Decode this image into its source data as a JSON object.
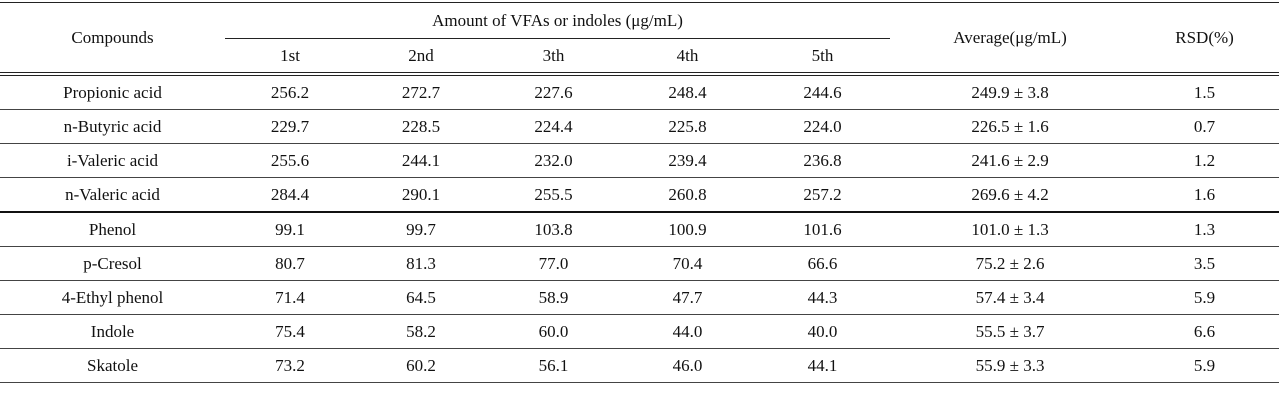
{
  "header": {
    "compounds": "Compounds",
    "amount": "Amount of VFAs or indoles (μg/mL)",
    "runs": [
      "1st",
      "2nd",
      "3th",
      "4th",
      "5th"
    ],
    "average": "Average(μg/mL)",
    "rsd": "RSD(%)"
  },
  "rows": [
    {
      "compound": "Propionic acid",
      "values": [
        "256.2",
        "272.7",
        "227.6",
        "248.4",
        "244.6"
      ],
      "average": "249.9 ± 3.8",
      "rsd": "1.5"
    },
    {
      "compound": "n-Butyric acid",
      "values": [
        "229.7",
        "228.5",
        "224.4",
        "225.8",
        "224.0"
      ],
      "average": "226.5 ± 1.6",
      "rsd": "0.7"
    },
    {
      "compound": "i-Valeric acid",
      "values": [
        "255.6",
        "244.1",
        "232.0",
        "239.4",
        "236.8"
      ],
      "average": "241.6 ± 2.9",
      "rsd": "1.2"
    },
    {
      "compound": "n-Valeric acid",
      "values": [
        "284.4",
        "290.1",
        "255.5",
        "260.8",
        "257.2"
      ],
      "average": "269.6 ± 4.2",
      "rsd": "1.6"
    },
    {
      "compound": "Phenol",
      "values": [
        "99.1",
        "99.7",
        "103.8",
        "100.9",
        "101.6"
      ],
      "average": "101.0 ± 1.3",
      "rsd": "1.3"
    },
    {
      "compound": "p-Cresol",
      "values": [
        "80.7",
        "81.3",
        "77.0",
        "70.4",
        "66.6"
      ],
      "average": "75.2 ± 2.6",
      "rsd": "3.5"
    },
    {
      "compound": "4-Ethyl phenol",
      "values": [
        "71.4",
        "64.5",
        "58.9",
        "47.7",
        "44.3"
      ],
      "average": "57.4 ± 3.4",
      "rsd": "5.9"
    },
    {
      "compound": "Indole",
      "values": [
        "75.4",
        "58.2",
        "60.0",
        "44.0",
        "40.0"
      ],
      "average": "55.5 ± 3.7",
      "rsd": "6.6"
    },
    {
      "compound": "Skatole",
      "values": [
        "73.2",
        "60.2",
        "56.1",
        "46.0",
        "44.1"
      ],
      "average": "55.9 ± 3.3",
      "rsd": "5.9"
    }
  ]
}
